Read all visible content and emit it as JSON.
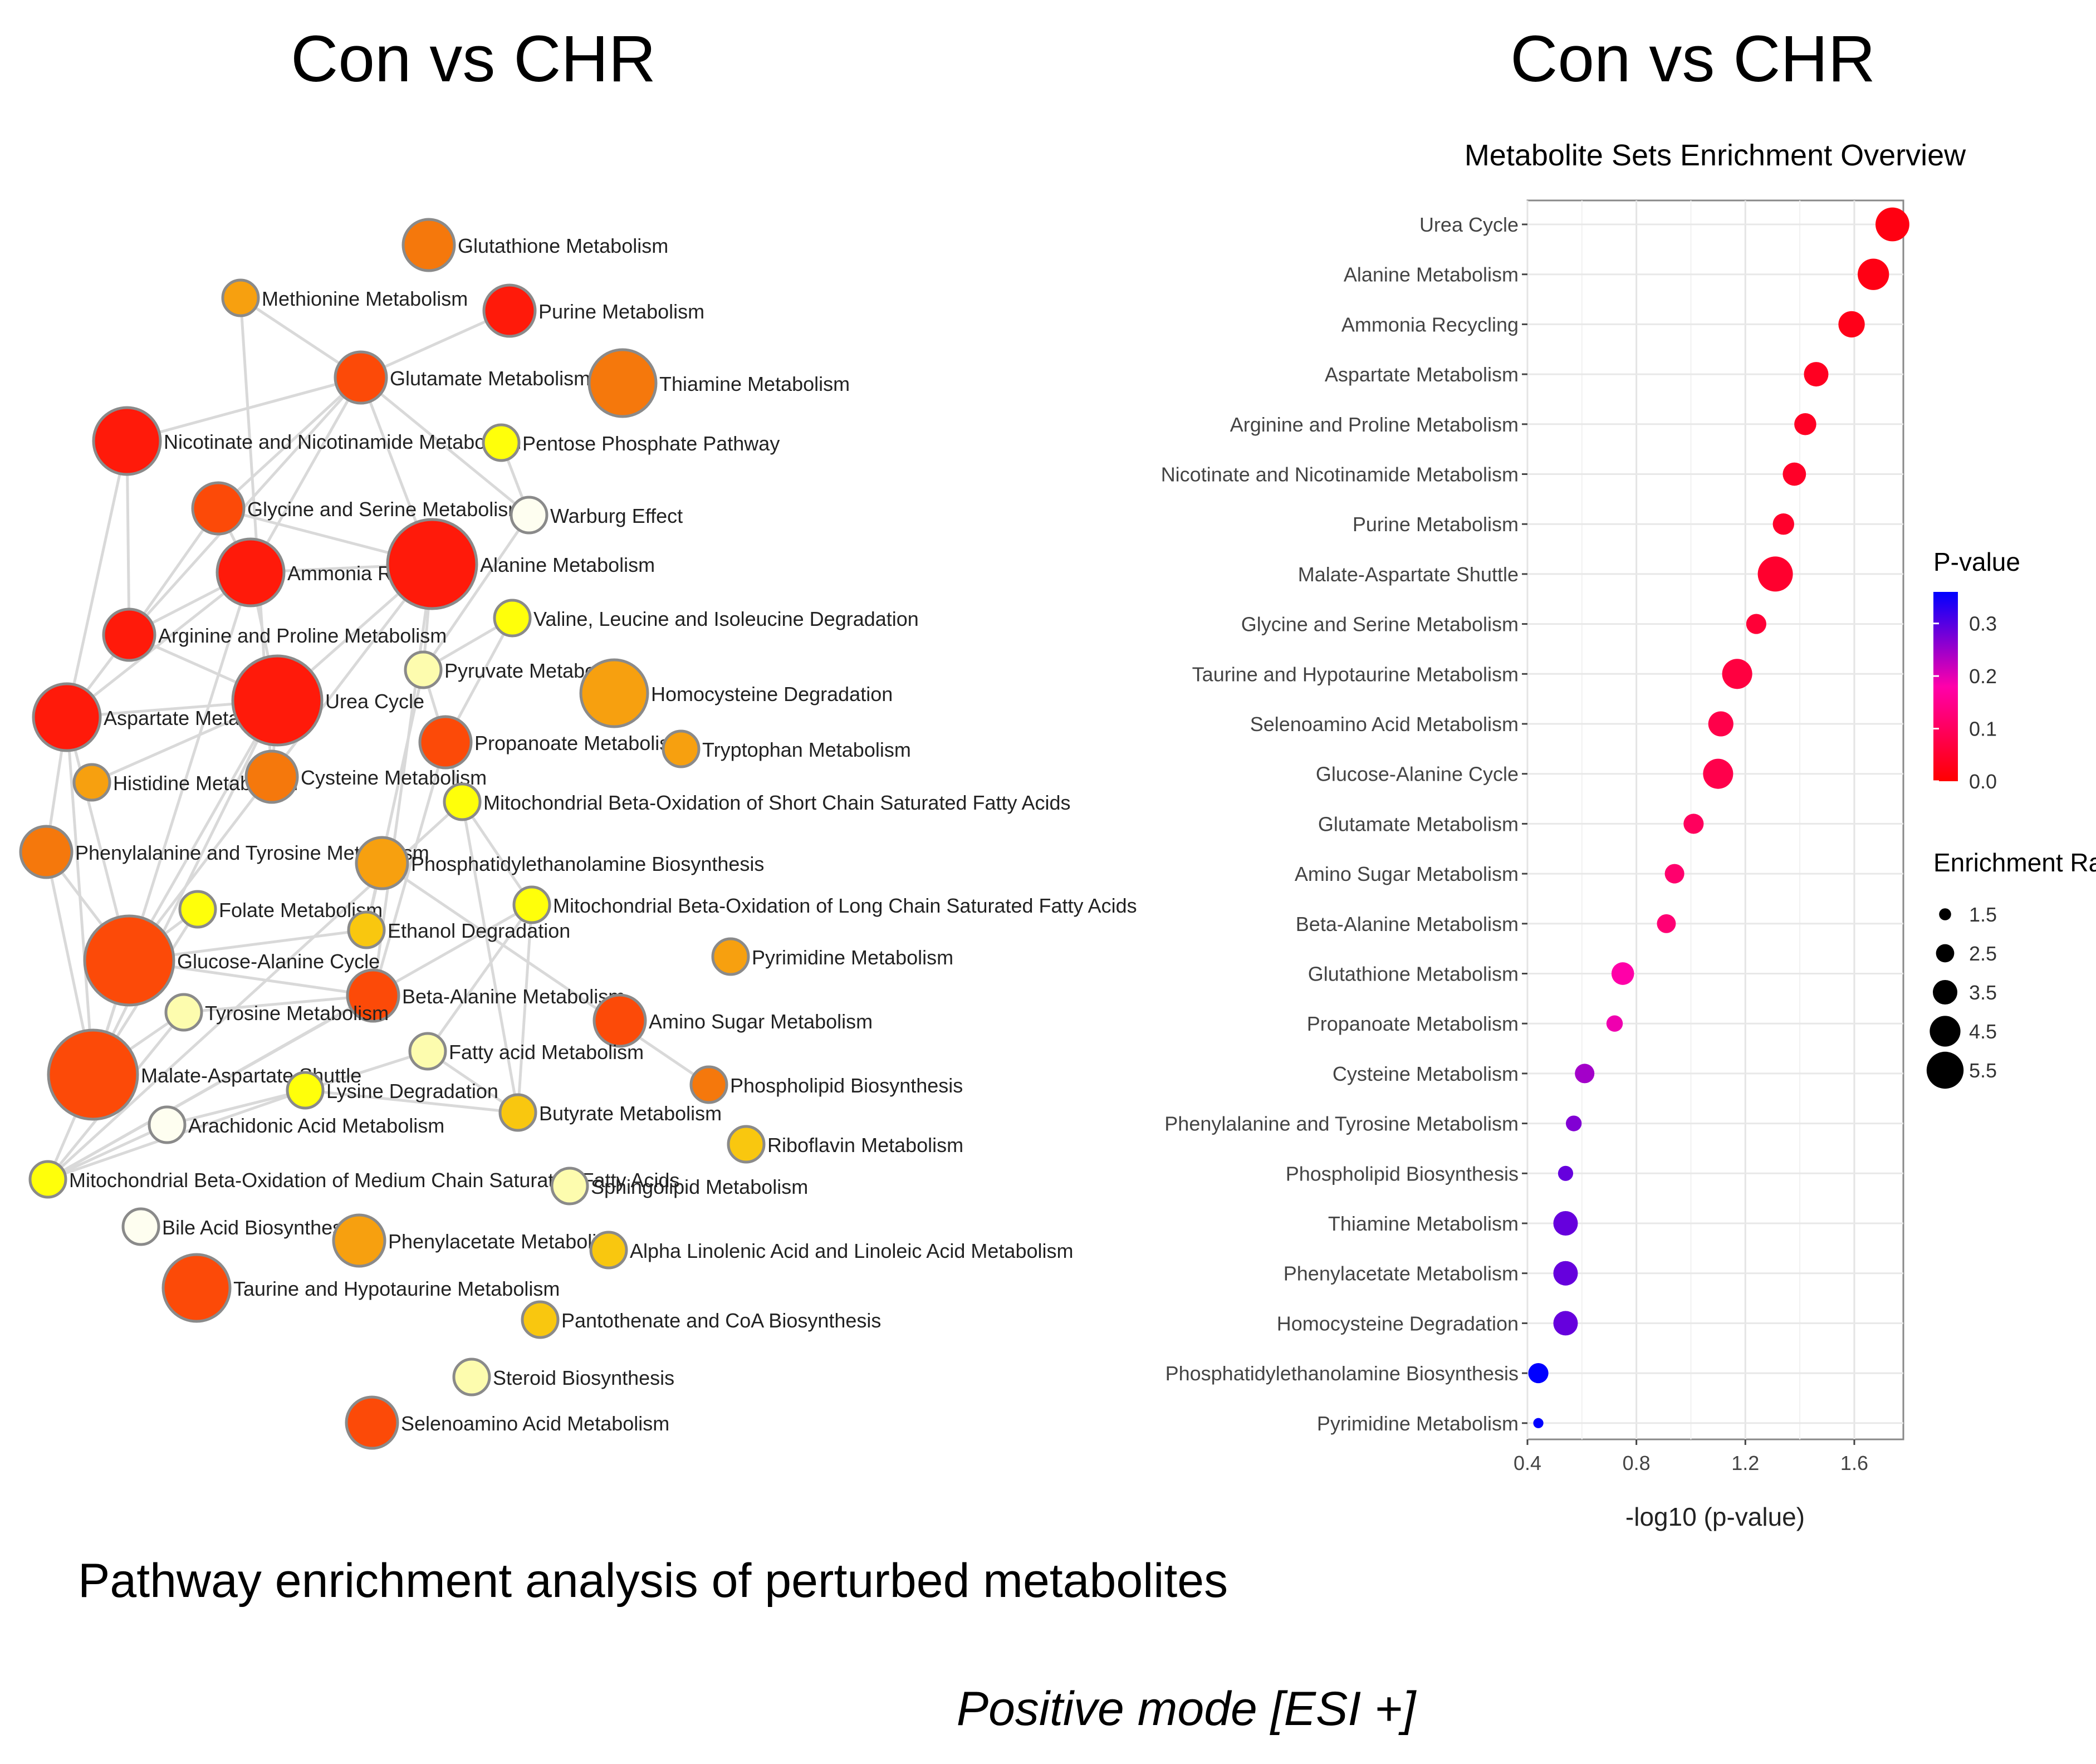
{
  "left_title": "Con vs CHR",
  "right_title": "Con vs CHR",
  "caption": "Pathway enrichment analysis of perturbed metabolites",
  "mode_label": "Positive mode [ESI +]",
  "colors": {
    "red": "#ff1a0a",
    "red_orange": "#fc4a08",
    "orange": "#f5780c",
    "light_orange": "#f7a00f",
    "gold": "#f9c70f",
    "yellow": "#ffff0a",
    "pale_yellow": "#fdfcae",
    "white": "#fefef0",
    "edge": "#d9d9d9",
    "node_stroke": "#8a8a8a",
    "grid": "#ebebeb"
  },
  "network": {
    "nodes": [
      {
        "id": "glutathione",
        "label": "Glutathione Metabolism",
        "color": "orange",
        "size": 2
      },
      {
        "id": "methionine",
        "label": "Methionine Metabolism",
        "color": "light_orange",
        "size": 1
      },
      {
        "id": "purine",
        "label": "Purine Metabolism",
        "color": "red",
        "size": 2
      },
      {
        "id": "glutamate",
        "label": "Glutamate Metabolism",
        "color": "red_orange",
        "size": 2
      },
      {
        "id": "thiamine",
        "label": "Thiamine Metabolism",
        "color": "orange",
        "size": 3
      },
      {
        "id": "nicotinate",
        "label": "Nicotinate and Nicotinamide Metabolism",
        "color": "red",
        "size": 3
      },
      {
        "id": "pentose",
        "label": "Pentose Phosphate Pathway",
        "color": "yellow",
        "size": 1
      },
      {
        "id": "glycine",
        "label": "Glycine and Serine Metabolism",
        "color": "red_orange",
        "size": 2
      },
      {
        "id": "warburg",
        "label": "Warburg Effect",
        "color": "white",
        "size": 1
      },
      {
        "id": "ammonia",
        "label": "Ammonia Recycling",
        "color": "red",
        "size": 3
      },
      {
        "id": "alanine",
        "label": "Alanine Metabolism",
        "color": "red",
        "size": 4
      },
      {
        "id": "valine",
        "label": "Valine, Leucine and Isoleucine Degradation",
        "color": "yellow",
        "size": 1
      },
      {
        "id": "arginine",
        "label": "Arginine and Proline Metabolism",
        "color": "red",
        "size": 2
      },
      {
        "id": "pyruvate",
        "label": "Pyruvate Metabolism",
        "color": "pale_yellow",
        "size": 1
      },
      {
        "id": "homocysteine",
        "label": "Homocysteine Degradation",
        "color": "light_orange",
        "size": 3
      },
      {
        "id": "aspartate",
        "label": "Aspartate Metabolism",
        "color": "red",
        "size": 3
      },
      {
        "id": "urea",
        "label": "Urea Cycle",
        "color": "red",
        "size": 4
      },
      {
        "id": "propanoate",
        "label": "Propanoate Metabolism",
        "color": "red_orange",
        "size": 2
      },
      {
        "id": "tryptophan",
        "label": "Tryptophan Metabolism",
        "color": "light_orange",
        "size": 1
      },
      {
        "id": "histidine",
        "label": "Histidine Metabolism",
        "color": "light_orange",
        "size": 1
      },
      {
        "id": "cysteine",
        "label": "Cysteine Metabolism",
        "color": "orange",
        "size": 2
      },
      {
        "id": "mito_short",
        "label": "Mitochondrial Beta-Oxidation of Short Chain Saturated Fatty Acids",
        "color": "yellow",
        "size": 1
      },
      {
        "id": "phenylalanine",
        "label": "Phenylalanine and Tyrosine Metabolism",
        "color": "orange",
        "size": 2
      },
      {
        "id": "phosphatidyl",
        "label": "Phosphatidylethanolamine Biosynthesis",
        "color": "light_orange",
        "size": 2
      },
      {
        "id": "folate",
        "label": "Folate Metabolism",
        "color": "yellow",
        "size": 1
      },
      {
        "id": "mito_long",
        "label": "Mitochondrial Beta-Oxidation of Long Chain Saturated Fatty Acids",
        "color": "yellow",
        "size": 1
      },
      {
        "id": "ethanol",
        "label": "Ethanol Degradation",
        "color": "gold",
        "size": 1
      },
      {
        "id": "glucose_ala",
        "label": "Glucose-Alanine Cycle",
        "color": "red_orange",
        "size": 4
      },
      {
        "id": "pyrimidine",
        "label": "Pyrimidine Metabolism",
        "color": "light_orange",
        "size": 1
      },
      {
        "id": "beta_alanine",
        "label": "Beta-Alanine Metabolism",
        "color": "red_orange",
        "size": 2
      },
      {
        "id": "tyrosine",
        "label": "Tyrosine Metabolism",
        "color": "pale_yellow",
        "size": 1
      },
      {
        "id": "amino_sugar",
        "label": "Amino Sugar Metabolism",
        "color": "red_orange",
        "size": 2
      },
      {
        "id": "fatty_acid",
        "label": "Fatty acid Metabolism",
        "color": "pale_yellow",
        "size": 1
      },
      {
        "id": "malate",
        "label": "Malate-Aspartate Shuttle",
        "color": "red_orange",
        "size": 4
      },
      {
        "id": "lysine",
        "label": "Lysine Degradation",
        "color": "yellow",
        "size": 1
      },
      {
        "id": "phospholipid",
        "label": "Phospholipid Biosynthesis",
        "color": "orange",
        "size": 1
      },
      {
        "id": "butyrate",
        "label": "Butyrate Metabolism",
        "color": "gold",
        "size": 1
      },
      {
        "id": "arachidonic",
        "label": "Arachidonic Acid Metabolism",
        "color": "white",
        "size": 1
      },
      {
        "id": "riboflavin",
        "label": "Riboflavin Metabolism",
        "color": "gold",
        "size": 1
      },
      {
        "id": "mito_medium",
        "label": "Mitochondrial Beta-Oxidation of Medium Chain Saturated Fatty Acids",
        "color": "yellow",
        "size": 1
      },
      {
        "id": "sphingolipid",
        "label": "Sphingolipid Metabolism",
        "color": "pale_yellow",
        "size": 1
      },
      {
        "id": "bile",
        "label": "Bile Acid Biosynthesis",
        "color": "white",
        "size": 1
      },
      {
        "id": "phenylacetate",
        "label": "Phenylacetate Metabolism",
        "color": "light_orange",
        "size": 2
      },
      {
        "id": "alpha_linolenic",
        "label": "Alpha Linolenic Acid and Linoleic Acid Metabolism",
        "color": "gold",
        "size": 1
      },
      {
        "id": "taurine",
        "label": "Taurine and Hypotaurine Metabolism",
        "color": "red_orange",
        "size": 3
      },
      {
        "id": "pantothenate",
        "label": "Pantothenate and CoA Biosynthesis",
        "color": "gold",
        "size": 1
      },
      {
        "id": "steroid",
        "label": "Steroid Biosynthesis",
        "color": "pale_yellow",
        "size": 1
      },
      {
        "id": "selenoamino",
        "label": "Selenoamino Acid Metabolism",
        "color": "red_orange",
        "size": 2
      }
    ],
    "edges": [
      [
        "methionine",
        "glutamate"
      ],
      [
        "methionine",
        "cysteine"
      ],
      [
        "purine",
        "glutamate"
      ],
      [
        "glutamate",
        "nicotinate"
      ],
      [
        "glutamate",
        "glycine"
      ],
      [
        "glutamate",
        "ammonia"
      ],
      [
        "glutamate",
        "alanine"
      ],
      [
        "glutamate",
        "arginine"
      ],
      [
        "glutamate",
        "warburg"
      ],
      [
        "pentose",
        "warburg"
      ],
      [
        "warburg",
        "pyruvate"
      ],
      [
        "nicotinate",
        "arginine"
      ],
      [
        "nicotinate",
        "aspartate"
      ],
      [
        "glycine",
        "ammonia"
      ],
      [
        "glycine",
        "arginine"
      ],
      [
        "glycine",
        "alanine"
      ],
      [
        "ammonia",
        "arginine"
      ],
      [
        "ammonia",
        "aspartate"
      ],
      [
        "ammonia",
        "urea"
      ],
      [
        "ammonia",
        "alanine"
      ],
      [
        "ammonia",
        "malate"
      ],
      [
        "alanine",
        "urea"
      ],
      [
        "alanine",
        "pyruvate"
      ],
      [
        "alanine",
        "glucose_ala"
      ],
      [
        "alanine",
        "beta_alanine"
      ],
      [
        "arginine",
        "urea"
      ],
      [
        "arginine",
        "aspartate"
      ],
      [
        "urea",
        "aspartate"
      ],
      [
        "urea",
        "cysteine"
      ],
      [
        "urea",
        "histidine"
      ],
      [
        "urea",
        "glucose_ala"
      ],
      [
        "urea",
        "malate"
      ],
      [
        "aspartate",
        "malate"
      ],
      [
        "aspartate",
        "phenylalanine"
      ],
      [
        "aspartate",
        "glucose_ala"
      ],
      [
        "propanoate",
        "valine"
      ],
      [
        "propanoate",
        "mito_short"
      ],
      [
        "propanoate",
        "beta_alanine"
      ],
      [
        "propanoate",
        "pyruvate"
      ],
      [
        "mito_short",
        "mito_long"
      ],
      [
        "mito_short",
        "mito_medium"
      ],
      [
        "mito_short",
        "butyrate"
      ],
      [
        "phosphatidyl",
        "phospholipid"
      ],
      [
        "phosphatidyl",
        "ethanol"
      ],
      [
        "mito_long",
        "fatty_acid"
      ],
      [
        "mito_long",
        "mito_medium"
      ],
      [
        "mito_long",
        "butyrate"
      ],
      [
        "folate",
        "glucose_ala"
      ],
      [
        "folate",
        "malate"
      ],
      [
        "ethanol",
        "glucose_ala"
      ],
      [
        "ethanol",
        "pyruvate"
      ],
      [
        "glucose_ala",
        "malate"
      ],
      [
        "glucose_ala",
        "beta_alanine"
      ],
      [
        "glucose_ala",
        "phenylalanine"
      ],
      [
        "beta_alanine",
        "tyrosine"
      ],
      [
        "beta_alanine",
        "mito_medium"
      ],
      [
        "fatty_acid",
        "lysine"
      ],
      [
        "fatty_acid",
        "butyrate"
      ],
      [
        "malate",
        "mito_medium"
      ],
      [
        "malate",
        "phenylalanine"
      ],
      [
        "malate",
        "tyrosine"
      ],
      [
        "lysine",
        "arachidonic"
      ],
      [
        "lysine",
        "mito_medium"
      ],
      [
        "lysine",
        "butyrate"
      ],
      [
        "mito_medium",
        "arachidonic"
      ],
      [
        "mito_medium",
        "tyrosine"
      ],
      [
        "mito_medium",
        "beta_alanine"
      ],
      [
        "valine",
        "pyruvate"
      ]
    ]
  },
  "chart_data": {
    "type": "scatter",
    "title": "Metabolite Sets Enrichment Overview",
    "xlabel": "-log10 (p-value)",
    "ylabel": "",
    "xlim": [
      0.4,
      1.78
    ],
    "xticks": [
      0.4,
      0.8,
      1.2,
      1.6
    ],
    "xtick_labels": [
      "0.4",
      "0.8",
      "1.2",
      "1.6"
    ],
    "grid": true,
    "categories": [
      "Urea Cycle",
      "Alanine Metabolism",
      "Ammonia Recycling",
      "Aspartate Metabolism",
      "Arginine and Proline Metabolism",
      "Nicotinate and Nicotinamide Metabolism",
      "Purine Metabolism",
      "Malate-Aspartate Shuttle",
      "Glycine and Serine Metabolism",
      "Taurine and Hypotaurine Metabolism",
      "Selenoamino Acid Metabolism",
      "Glucose-Alanine Cycle",
      "Glutamate Metabolism",
      "Amino Sugar Metabolism",
      "Beta-Alanine Metabolism",
      "Glutathione Metabolism",
      "Propanoate Metabolism",
      "Cysteine Metabolism",
      "Phenylalanine and Tyrosine Metabolism",
      "Phospholipid Biosynthesis",
      "Thiamine Metabolism",
      "Phenylacetate Metabolism",
      "Homocysteine Degradation",
      "Phosphatidylethanolamine Biosynthesis",
      "Pyrimidine Metabolism"
    ],
    "values": [
      1.74,
      1.67,
      1.59,
      1.46,
      1.42,
      1.38,
      1.34,
      1.31,
      1.24,
      1.17,
      1.11,
      1.1,
      1.01,
      0.94,
      0.91,
      0.75,
      0.72,
      0.61,
      0.57,
      0.54,
      0.54,
      0.54,
      0.54,
      0.44,
      0.44
    ],
    "p_values": [
      0.018,
      0.021,
      0.026,
      0.035,
      0.038,
      0.042,
      0.046,
      0.049,
      0.058,
      0.068,
      0.078,
      0.079,
      0.098,
      0.115,
      0.123,
      0.178,
      0.191,
      0.245,
      0.269,
      0.288,
      0.288,
      0.288,
      0.288,
      0.363,
      0.363
    ],
    "enrichment_ratios": [
      5.0,
      4.6,
      3.8,
      3.5,
      3.1,
      3.3,
      3.0,
      5.2,
      2.8,
      4.4,
      3.6,
      4.4,
      2.8,
      2.7,
      2.6,
      3.2,
      2.2,
      2.7,
      2.1,
      2.0,
      3.5,
      3.5,
      3.5,
      2.8,
      1.2
    ],
    "legend_pvalue": {
      "title": "P-value",
      "ticks": [
        0.3,
        0.2,
        0.1,
        0.0
      ],
      "tick_labels": [
        "0.3",
        "0.2",
        "0.1",
        "0.0"
      ],
      "range": [
        0.0,
        0.36
      ],
      "color_low": "#ff0000",
      "color_mid": "#ff00aa",
      "color_high": "#0000ff"
    },
    "legend_size": {
      "title": "Enrichment Ratio",
      "values": [
        1.5,
        2.5,
        3.5,
        4.5,
        5.5
      ],
      "labels": [
        "1.5",
        "2.5",
        "3.5",
        "4.5",
        "5.5"
      ]
    }
  }
}
